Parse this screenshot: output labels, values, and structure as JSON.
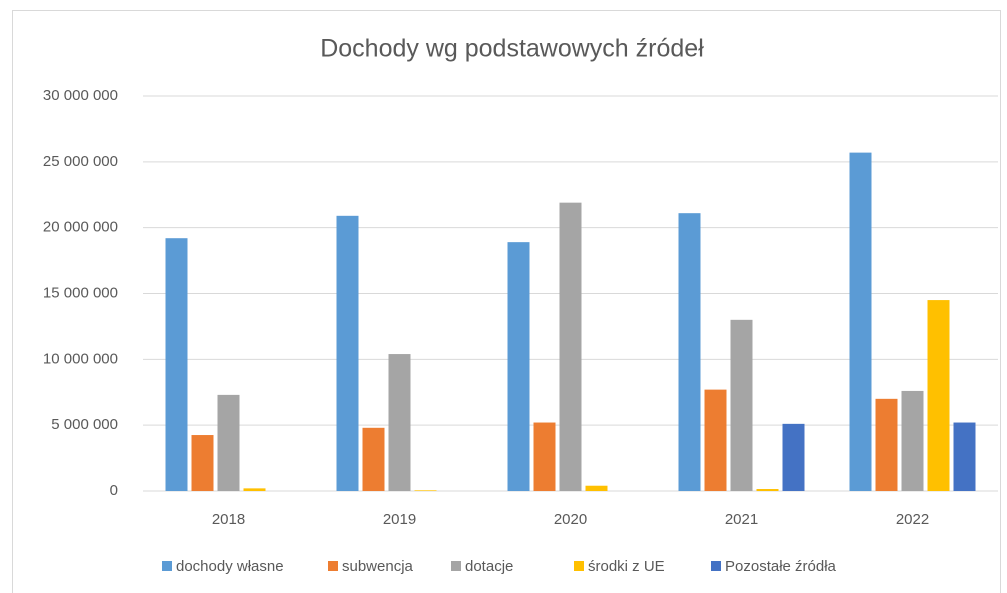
{
  "chart_data": {
    "type": "bar",
    "title": "Dochody wg podstawowych źródeł",
    "categories": [
      "2018",
      "2019",
      "2020",
      "2021",
      "2022"
    ],
    "series": [
      {
        "name": "dochody własne",
        "color": "#5b9bd5",
        "values": [
          19200000,
          20900000,
          18900000,
          21100000,
          25700000
        ]
      },
      {
        "name": "subwencja",
        "color": "#ed7d31",
        "values": [
          4250000,
          4800000,
          5200000,
          7700000,
          7000000
        ]
      },
      {
        "name": "dotacje",
        "color": "#a5a5a5",
        "values": [
          7300000,
          10400000,
          21900000,
          13000000,
          7600000
        ]
      },
      {
        "name": "środki z UE",
        "color": "#ffc000",
        "values": [
          200000,
          50000,
          400000,
          150000,
          14500000
        ]
      },
      {
        "name": "Pozostałe źródła",
        "color": "#4472c4",
        "values": [
          0,
          0,
          0,
          5100000,
          5200000
        ]
      }
    ],
    "ylim": [
      0,
      30000000
    ],
    "yticks": [
      {
        "value": 0,
        "label": "0"
      },
      {
        "value": 5000000,
        "label": "5 000 000"
      },
      {
        "value": 10000000,
        "label": "10 000 000"
      },
      {
        "value": 15000000,
        "label": "15 000 000"
      },
      {
        "value": 20000000,
        "label": "20 000 000"
      },
      {
        "value": 25000000,
        "label": "25 000 000"
      },
      {
        "value": 30000000,
        "label": "30 000 000"
      }
    ],
    "grid": true,
    "legend": "bottom"
  }
}
